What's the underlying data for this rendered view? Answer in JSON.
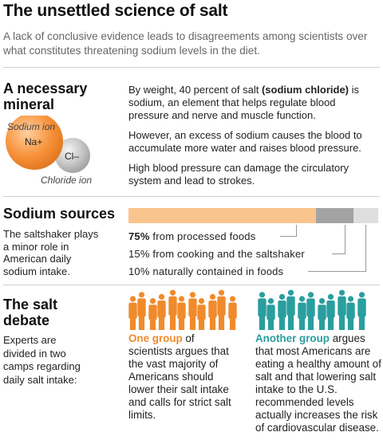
{
  "header": {
    "title": "The unsettled science of salt",
    "subtitle": "A lack of conclusive evidence leads to disagreements among scientists over what constitutes threatening sodium levels in the diet."
  },
  "mineral": {
    "heading_line1": "A necessary",
    "heading_line2": "mineral",
    "sodium_label": "Sodium ion",
    "sodium_symbol": "Na+",
    "chloride_symbol": "Cl–",
    "chloride_label": "Chloride ion",
    "p1_prefix": "By weight, 40 percent of salt ",
    "p1_bold": "(sodium chloride)",
    "p1_suffix": " is sodium, an element that helps regulate blood pressure and nerve and muscle function.",
    "p2": "However, an excess of sodium causes the blood to accumulate more water and raises blood pressure.",
    "p3": "High blood pressure can damage the circulatory system and lead to strokes."
  },
  "sources": {
    "heading": "Sodium sources",
    "side_text": "The saltshaker plays a minor role in American daily sodium intake.",
    "line1_bold": "75%",
    "line1_rest": " from processed foods",
    "line2": "15% from cooking and the saltshaker",
    "line3": "10% naturally contained in foods",
    "shares": [
      75,
      15,
      10
    ],
    "colors": [
      "#f9c48d",
      "#a3a3a3",
      "#dedede"
    ]
  },
  "debate": {
    "heading_line1": "The salt",
    "heading_line2": "debate",
    "side_text": "Experts are divided in two camps regarding daily salt intake:",
    "group1_highlight": "One group",
    "group1_text": " of scientists argues that the vast majority of Americans should lower their salt intake and calls for strict salt limits.",
    "group2_highlight": "Another group",
    "group2_text": " argues that most Americans are eating a healthy amount of salt and that lowering salt intake to the U.S. recommended levels actually increases the risk of cardiovascular disease.",
    "group1_color": "#f08b2c",
    "group2_color": "#2a9e9e"
  }
}
